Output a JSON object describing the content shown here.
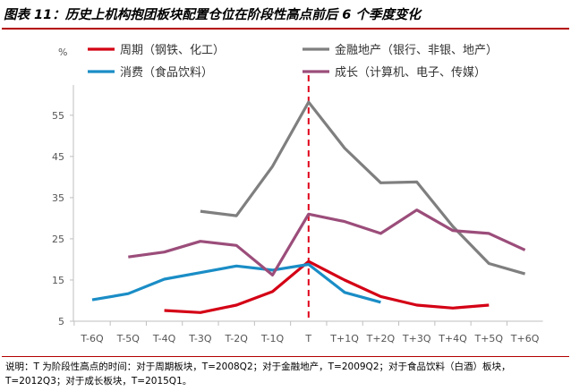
{
  "title": "图表 11：历史上机构抱团板块配置仓位在阶段性高点前后 6 个季度变化",
  "note": "说明：T 为阶段性高点的时间：对于周期板块，T=2008Q2；对于金融地产，T=2009Q2；对于食品饮料（白酒）板块，T=2012Q3；对于成长板块，T=2015Q1。",
  "chart_data": {
    "type": "line",
    "ylabel": "%",
    "ylim": [
      5,
      58
    ],
    "yticks": [
      5,
      15,
      25,
      35,
      45,
      55
    ],
    "categories": [
      "T-6Q",
      "T-5Q",
      "T-4Q",
      "T-3Q",
      "T-2Q",
      "T-1Q",
      "T",
      "T+1Q",
      "T+2Q",
      "T+3Q",
      "T+4Q",
      "T+5Q",
      "T+6Q"
    ],
    "reference_line": {
      "category": "T",
      "color": "#e0001b",
      "style": "dashed"
    },
    "series": [
      {
        "name": "周期（钢铁、化工）",
        "color": "#d40015",
        "values": [
          null,
          null,
          7.6,
          7.1,
          8.9,
          12.2,
          19.5,
          15.0,
          11.0,
          8.9,
          8.2,
          8.9,
          null
        ]
      },
      {
        "name": "金融地产（银行、非银、地产）",
        "color": "#7f7f7f",
        "values": [
          null,
          null,
          null,
          31.7,
          30.6,
          42.6,
          58.2,
          47.0,
          38.6,
          38.8,
          28.0,
          19.0,
          16.5
        ]
      },
      {
        "name": "消费（食品饮料）",
        "color": "#1a8dc6",
        "values": [
          10.2,
          11.7,
          15.2,
          16.8,
          18.4,
          17.4,
          18.8,
          12.0,
          9.6,
          null,
          null,
          null,
          null
        ]
      },
      {
        "name": "成长（计算机、电子、传媒）",
        "color": "#9b4d7a",
        "values": [
          null,
          20.6,
          21.8,
          24.4,
          23.4,
          16.2,
          31.0,
          29.2,
          26.3,
          32.0,
          27.0,
          26.3,
          22.3
        ]
      }
    ]
  }
}
